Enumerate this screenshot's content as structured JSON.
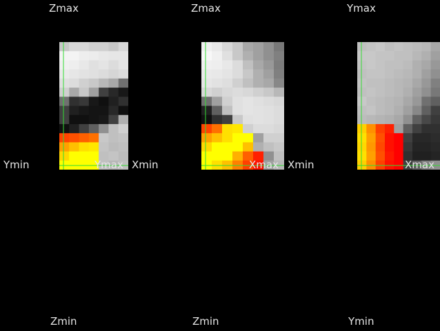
{
  "panels": [
    {
      "id": "coronal",
      "labels": {
        "top": "Zmax",
        "bottom": "Zmin",
        "left": "Ymin",
        "right": "Ymax"
      },
      "grid": [
        "#c8c8c8,#d8d8d8,#d8d8d8,#d0d0d0,#d0d0d0,#c8c8c8,#d8d8d8",
        "#f4f4f4,#f4f4f4,#eeeeee,#ececec,#e8e8e8,#e6e6e6,#e6e6e6",
        "#f0f0f0,#eeeeee,#e8e8e8,#e0e0e0,#e4e4e4,#dcdcdc,#e4e4e4",
        "#eaeaea,#e6e6e6,#e2e2e2,#e0e0e0,#dcdcdc,#d6d6d6,#dcdcdc",
        "#e0e0e0,#dcdcdc,#d0d0d0,#c8c8c8,#b8b8b8,#a8a8a8,#707070",
        "#d0d0d0,#a8a8a8,#c8c8c8,#a0a0a0,#404040,#282828,#181818",
        "#707070,#303030,#383838,#181818,#101010,#202020,#303030",
        "#404040,#202020,#181818,#141414,#141414,#282828,#101010",
        "#404040,#101010,#101010,#141414,#181818,#404040,#b0b0b0",
        "#101010,#202020,#404040,#606060,#909090,#c0c0c0,#d0d0d0",
        "#ff4400,#ff5000,#ff6000,#ff7000,#c8c8c8,#c0c0c0,#c4c4c4",
        "#ffa000,#ffc000,#ffe000,#ffe800,#c4c4c4,#bcbcbc,#c0c0c0",
        "#ffd800,#ffff00,#ffff00,#ffff00,#c0c0c0,#c4c4c4,#bcbcbc",
        "#ffff00,#ffff00,#ffff00,#ffff00,#c0c0c0,#b8b8b8,#c0c0c0"
      ]
    },
    {
      "id": "sagittal",
      "labels": {
        "top": "Zmax",
        "bottom": "Zmin",
        "left": "Xmin",
        "right": "Xmax"
      },
      "grid": [
        "#f0f0f0,#e8e8e8,#d8d8d8,#c8c8c8,#a8a8a8,#a0a0a0,#909090,#787878",
        "#f8f8f8,#f0f0f0,#e0e0e0,#c8c8c8,#b0b0b0,#a0a0a0,#909090,#808080",
        "#f0f0f0,#eeeeee,#e8e8e8,#dcdcdc,#c0c0c0,#a8a8a8,#989898,#7c7c7c",
        "#eaeaea,#e8e8e8,#e4e4e4,#dcdcdc,#c8c8c8,#b0b0b0,#a0a0a0,#808080",
        "#e6e6e6,#e2e2e2,#dedede,#d0d0d0,#c0c0c0,#b0b0b0,#a8a8a8,#888888",
        "#d8d8d8,#d0d0d0,#d8d8d8,#dcdcdc,#d8d8d8,#d0d0d0,#c8c8c8,#b8b8b8",
        "#707070,#a0a0a0,#d0d0d0,#e0e0e0,#e4e4e4,#e0e0e0,#dcdcdc,#d8d8d8",
        "#202020,#606060,#c0c0c0,#e0e0e0,#e4e4e4,#e2e2e2,#e0e0e0,#dcdcdc",
        "#101010,#303030,#404040,#c8c8c8,#e0e0e0,#e2e2e2,#e0e0e0,#dcdcdc",
        "#ff4400,#ff7000,#ffe000,#ffe800,#d0d0d0,#dcdcdc,#dcdcdc,#d8d8d8",
        "#ffa000,#ffc000,#ffe000,#ffff00,#ffff00,#a0a0a0,#d0d0d0,#d0d0d0",
        "#ffd800,#ffff00,#ffff00,#ffff00,#ffc000,#b0b0b0,#c0c0c0,#c8c8c8",
        "#ffff00,#ffff00,#ffff00,#ffb000,#ff6000,#ff2000,#909090,#c0c0c0",
        "#ffff00,#ffe000,#ffc000,#ff8000,#ff4000,#ff1000,#a0a0a0,#b8b8b8"
      ]
    },
    {
      "id": "axial",
      "labels": {
        "top": "Ymax",
        "bottom": "Ymin",
        "left": "",
        "right": "Xmax"
      },
      "grid": [
        "#c0c0c0,#c4c4c4,#c8c8c8,#c0c0c0,#c4c4c4,#c0c0c0,#bcbcbc,#b8b8b8,#a8a8a8",
        "#c8c8c8,#c8c8c8,#c4c4c4,#c4c4c4,#c0c0c0,#c0c0c0,#b8b8b8,#b0b0b0,#a0a0a0",
        "#c4c4c4,#c8c8c8,#c4c4c4,#c0c0c0,#c0c0c0,#bcbcbc,#b0b0b0,#a8a8a8,#989898",
        "#c0c0c0,#c4c4c4,#c4c4c4,#c0c0c0,#bcbcbc,#b8b8b8,#b0b0b0,#a0a0a0,#909090",
        "#c4c4c4,#c0c0c0,#c0c0c0,#bcbcbc,#b8b8b8,#b4b4b4,#a8a8a8,#989898,#808080",
        "#c0c0c0,#c4c4c4,#c0c0c0,#bcbcbc,#b8b8b8,#b0b0b0,#a0a0a0,#909090,#787878",
        "#c8c8c8,#c0c0c0,#bcbcbc,#b8b8b8,#b4b4b4,#a8a8a8,#989898,#707070,#606060",
        "#c0c0c0,#c4c4c4,#bcbcbc,#b8b8b8,#b0b0b0,#a0a0a0,#888888,#606060,#404040",
        "#bcbcbc,#b8b8b8,#b4b4b4,#b0b0b0,#a8a8a8,#909090,#606060,#484848,#383838",
        "#ffd000,#ff9000,#ff4000,#ff2000,#a0a0a0,#606060,#404040,#303030,#303030",
        "#ffe000,#ffa000,#ff5000,#ff1000,#ff0000,#404040,#282828,#282828,#2c2c2c",
        "#ffd800,#ff9800,#ff4800,#ff1000,#ff0000,#383838,#242424,#242424,#282828",
        "#ffe000,#ffa000,#ff5000,#ff1800,#ff0000,#303030,#202020,#202020,#242424",
        "#ffd000,#ff9000,#ff4000,#ff1000,#ff0000,#404040,#606060,#808080,#909090"
      ]
    }
  ]
}
